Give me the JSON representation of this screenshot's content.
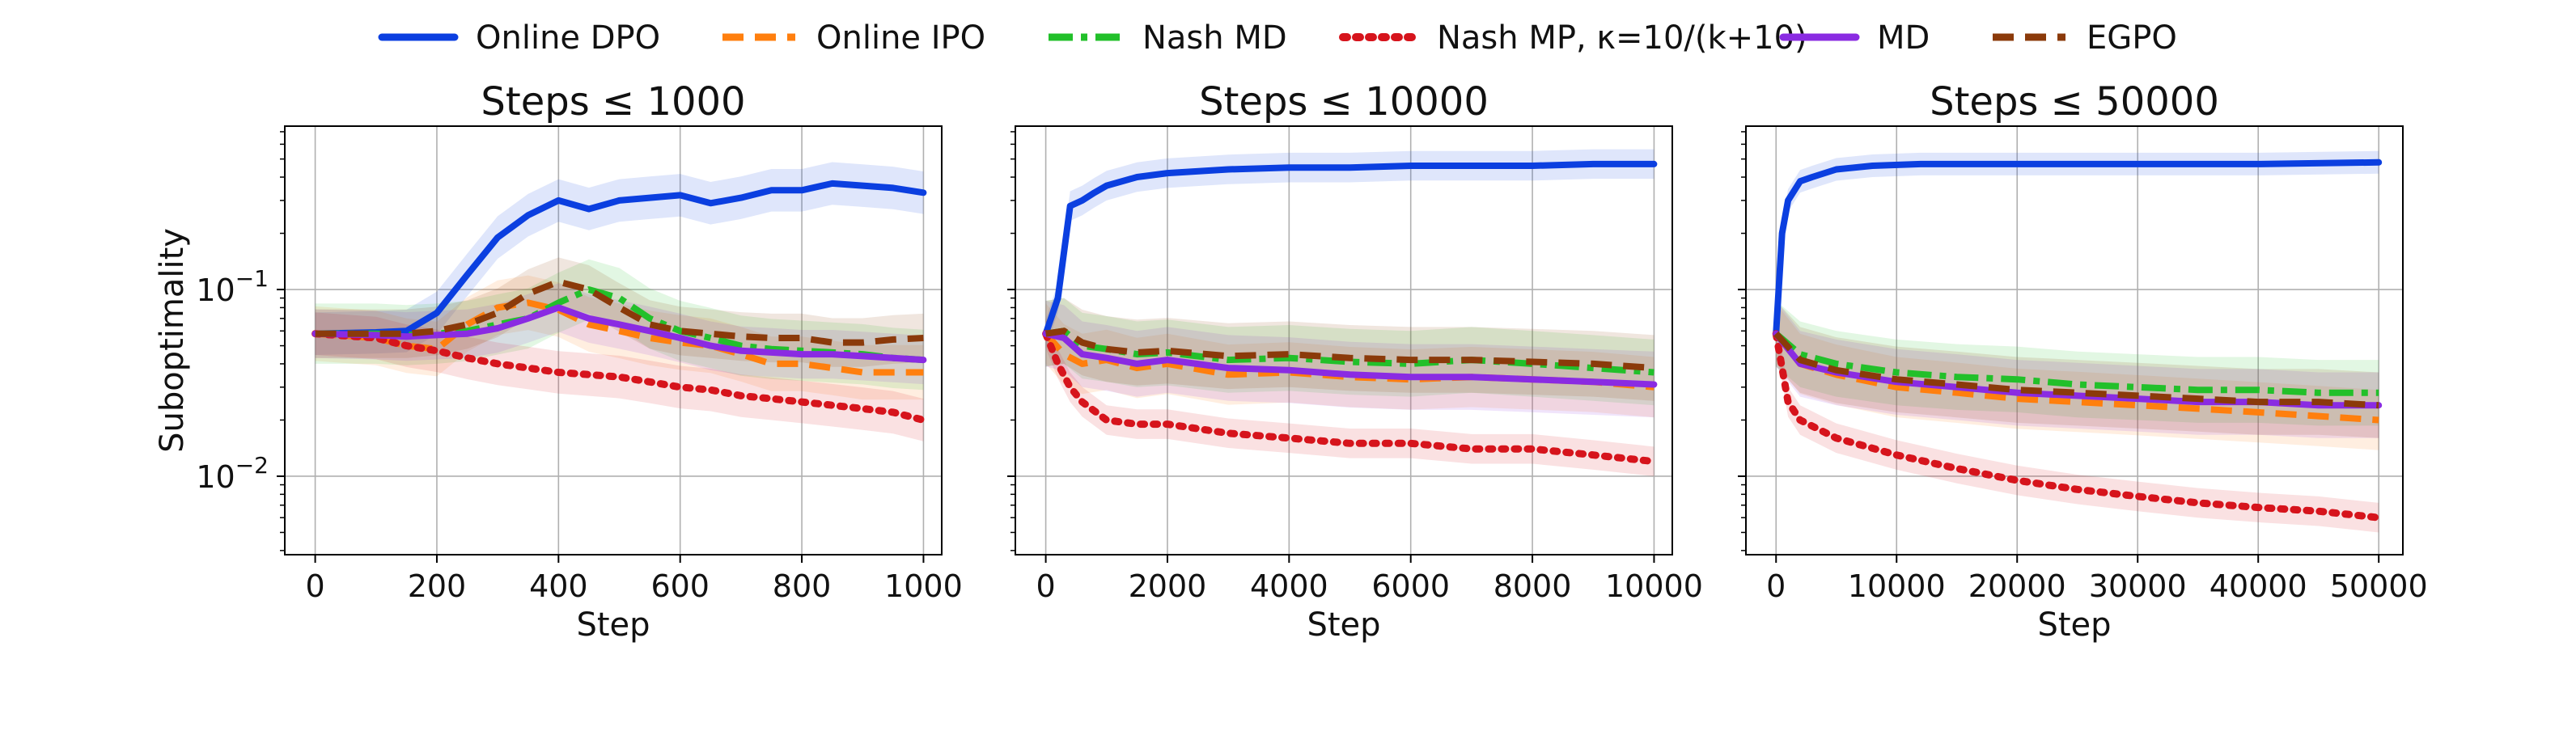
{
  "legend": [
    {
      "label": "Online DPO",
      "color": "#0b3fe0",
      "dash": "solid"
    },
    {
      "label": "Online IPO",
      "color": "#ff7f0e",
      "dash": "dash"
    },
    {
      "label": "Nash MD",
      "color": "#22c02a",
      "dash": "dashdot"
    },
    {
      "label": "Nash MP, κ=10/(k+10)",
      "color": "#d6141c",
      "dash": "dotted"
    },
    {
      "label": "MD",
      "color": "#8a2be2",
      "dash": "solid"
    },
    {
      "label": "EGPO",
      "color": "#8b3a0a",
      "dash": "dash"
    }
  ],
  "chart_data": [
    {
      "type": "line",
      "title": "Steps ≤ 1000",
      "xlabel": "Step",
      "ylabel": "Suboptimality",
      "yscale": "log",
      "xlim": [
        -50,
        1030
      ],
      "ylim": [
        0.0038,
        0.75
      ],
      "xticks": [
        0,
        200,
        400,
        600,
        800,
        1000
      ],
      "xtick_labels": [
        "0",
        "200",
        "400",
        "600",
        "800",
        "1000"
      ],
      "yticks": [
        0.1,
        0.01
      ],
      "ytick_labels": [
        "10^-1",
        "10^-2"
      ],
      "grid": true,
      "series": [
        {
          "name": "Online DPO",
          "x": [
            0,
            100,
            150,
            200,
            250,
            300,
            350,
            400,
            450,
            500,
            550,
            600,
            650,
            700,
            750,
            800,
            850,
            900,
            950,
            1000
          ],
          "y": [
            0.058,
            0.059,
            0.06,
            0.075,
            0.12,
            0.19,
            0.25,
            0.3,
            0.27,
            0.3,
            0.31,
            0.32,
            0.29,
            0.31,
            0.34,
            0.34,
            0.37,
            0.36,
            0.35,
            0.33
          ],
          "band": 0.3
        },
        {
          "name": "Online IPO",
          "x": [
            0,
            100,
            150,
            200,
            250,
            300,
            350,
            400,
            450,
            500,
            550,
            600,
            650,
            700,
            750,
            800,
            850,
            900,
            950,
            1000
          ],
          "y": [
            0.058,
            0.055,
            0.05,
            0.048,
            0.065,
            0.08,
            0.085,
            0.078,
            0.065,
            0.06,
            0.055,
            0.052,
            0.05,
            0.045,
            0.04,
            0.04,
            0.038,
            0.036,
            0.036,
            0.036
          ],
          "band": 0.4
        },
        {
          "name": "Nash MD",
          "x": [
            0,
            100,
            150,
            200,
            250,
            300,
            350,
            400,
            450,
            500,
            550,
            600,
            650,
            700,
            750,
            800,
            850,
            900,
            950,
            1000
          ],
          "y": [
            0.058,
            0.058,
            0.057,
            0.058,
            0.06,
            0.065,
            0.07,
            0.085,
            0.1,
            0.09,
            0.07,
            0.06,
            0.055,
            0.05,
            0.048,
            0.047,
            0.046,
            0.045,
            0.043,
            0.042
          ],
          "band": 0.45
        },
        {
          "name": "Nash MP",
          "x": [
            0,
            100,
            150,
            200,
            250,
            300,
            350,
            400,
            450,
            500,
            550,
            600,
            650,
            700,
            750,
            800,
            850,
            900,
            950,
            1000
          ],
          "y": [
            0.058,
            0.055,
            0.05,
            0.047,
            0.043,
            0.04,
            0.038,
            0.036,
            0.035,
            0.034,
            0.032,
            0.03,
            0.029,
            0.027,
            0.026,
            0.025,
            0.024,
            0.023,
            0.022,
            0.02
          ],
          "band": 0.3
        },
        {
          "name": "MD",
          "x": [
            0,
            100,
            150,
            200,
            250,
            300,
            350,
            400,
            450,
            500,
            550,
            600,
            650,
            700,
            750,
            800,
            850,
            900,
            950,
            1000
          ],
          "y": [
            0.058,
            0.057,
            0.056,
            0.057,
            0.058,
            0.062,
            0.07,
            0.08,
            0.07,
            0.065,
            0.06,
            0.055,
            0.05,
            0.047,
            0.046,
            0.045,
            0.045,
            0.044,
            0.043,
            0.042
          ],
          "band": 0.35
        },
        {
          "name": "EGPO",
          "x": [
            0,
            100,
            150,
            200,
            250,
            300,
            350,
            400,
            450,
            500,
            550,
            600,
            650,
            700,
            750,
            800,
            850,
            900,
            950,
            1000
          ],
          "y": [
            0.058,
            0.058,
            0.058,
            0.06,
            0.065,
            0.075,
            0.095,
            0.11,
            0.1,
            0.08,
            0.065,
            0.06,
            0.058,
            0.056,
            0.055,
            0.055,
            0.052,
            0.052,
            0.054,
            0.055
          ],
          "band": 0.35
        }
      ]
    },
    {
      "type": "line",
      "title": "Steps ≤ 10000",
      "xlabel": "Step",
      "ylabel": "",
      "yscale": "log",
      "xlim": [
        -500,
        10300
      ],
      "ylim": [
        0.0038,
        0.75
      ],
      "xticks": [
        0,
        2000,
        4000,
        6000,
        8000,
        10000
      ],
      "xtick_labels": [
        "0",
        "2000",
        "4000",
        "6000",
        "8000",
        "10000"
      ],
      "yticks": [],
      "ytick_labels": [],
      "grid": true,
      "series": [
        {
          "name": "Online DPO",
          "x": [
            0,
            200,
            400,
            600,
            800,
            1000,
            1500,
            2000,
            3000,
            4000,
            5000,
            6000,
            7000,
            8000,
            9000,
            10000
          ],
          "y": [
            0.058,
            0.09,
            0.28,
            0.3,
            0.33,
            0.36,
            0.4,
            0.42,
            0.44,
            0.45,
            0.45,
            0.46,
            0.46,
            0.46,
            0.47,
            0.47
          ],
          "band": 0.2
        },
        {
          "name": "Online IPO",
          "x": [
            0,
            300,
            600,
            1000,
            1500,
            2000,
            3000,
            4000,
            5000,
            6000,
            7000,
            8000,
            9000,
            10000
          ],
          "y": [
            0.058,
            0.045,
            0.04,
            0.042,
            0.038,
            0.04,
            0.035,
            0.036,
            0.034,
            0.033,
            0.034,
            0.033,
            0.032,
            0.03
          ],
          "band": 0.45
        },
        {
          "name": "Nash MD",
          "x": [
            0,
            300,
            600,
            1000,
            1500,
            2000,
            3000,
            4000,
            5000,
            6000,
            7000,
            8000,
            9000,
            10000
          ],
          "y": [
            0.058,
            0.06,
            0.05,
            0.048,
            0.045,
            0.046,
            0.042,
            0.043,
            0.041,
            0.04,
            0.042,
            0.04,
            0.038,
            0.036
          ],
          "band": 0.5
        },
        {
          "name": "Nash MP",
          "x": [
            0,
            200,
            400,
            600,
            1000,
            1500,
            2000,
            3000,
            4000,
            5000,
            6000,
            7000,
            8000,
            9000,
            10000
          ],
          "y": [
            0.058,
            0.04,
            0.03,
            0.025,
            0.02,
            0.019,
            0.019,
            0.017,
            0.016,
            0.015,
            0.015,
            0.014,
            0.014,
            0.013,
            0.012
          ],
          "band": 0.2
        },
        {
          "name": "MD",
          "x": [
            0,
            300,
            600,
            1000,
            1500,
            2000,
            3000,
            4000,
            5000,
            6000,
            7000,
            8000,
            9000,
            10000
          ],
          "y": [
            0.058,
            0.055,
            0.045,
            0.043,
            0.04,
            0.042,
            0.038,
            0.037,
            0.035,
            0.034,
            0.034,
            0.033,
            0.032,
            0.031
          ],
          "band": 0.5
        },
        {
          "name": "EGPO",
          "x": [
            0,
            300,
            600,
            1000,
            1500,
            2000,
            3000,
            4000,
            5000,
            6000,
            7000,
            8000,
            9000,
            10000
          ],
          "y": [
            0.058,
            0.06,
            0.052,
            0.048,
            0.046,
            0.047,
            0.044,
            0.045,
            0.043,
            0.042,
            0.042,
            0.041,
            0.04,
            0.038
          ],
          "band": 0.5
        }
      ]
    },
    {
      "type": "line",
      "title": "Steps ≤ 50000",
      "xlabel": "Step",
      "ylabel": "",
      "yscale": "log",
      "xlim": [
        -2500,
        52000
      ],
      "ylim": [
        0.0038,
        0.75
      ],
      "xticks": [
        0,
        10000,
        20000,
        30000,
        40000,
        50000
      ],
      "xtick_labels": [
        "0",
        "10000",
        "20000",
        "30000",
        "40000",
        "50000"
      ],
      "yticks": [],
      "ytick_labels": [],
      "grid": true,
      "series": [
        {
          "name": "Online DPO",
          "x": [
            0,
            500,
            1000,
            2000,
            3000,
            5000,
            8000,
            12000,
            20000,
            30000,
            40000,
            50000
          ],
          "y": [
            0.058,
            0.2,
            0.3,
            0.38,
            0.4,
            0.44,
            0.46,
            0.47,
            0.47,
            0.47,
            0.47,
            0.48
          ],
          "band": 0.15
        },
        {
          "name": "Online IPO",
          "x": [
            0,
            2000,
            5000,
            10000,
            15000,
            20000,
            25000,
            30000,
            35000,
            40000,
            45000,
            50000
          ],
          "y": [
            0.058,
            0.04,
            0.035,
            0.03,
            0.028,
            0.026,
            0.025,
            0.024,
            0.023,
            0.022,
            0.021,
            0.02
          ],
          "band": 0.45
        },
        {
          "name": "Nash MD",
          "x": [
            0,
            2000,
            5000,
            10000,
            15000,
            20000,
            25000,
            30000,
            35000,
            40000,
            45000,
            50000
          ],
          "y": [
            0.058,
            0.045,
            0.04,
            0.036,
            0.034,
            0.033,
            0.031,
            0.03,
            0.029,
            0.029,
            0.028,
            0.028
          ],
          "band": 0.5
        },
        {
          "name": "Nash MP",
          "x": [
            0,
            1000,
            2000,
            5000,
            10000,
            15000,
            20000,
            25000,
            30000,
            35000,
            40000,
            45000,
            50000
          ],
          "y": [
            0.058,
            0.025,
            0.02,
            0.016,
            0.013,
            0.011,
            0.0095,
            0.0085,
            0.0078,
            0.0072,
            0.0068,
            0.0065,
            0.006
          ],
          "band": 0.2
        },
        {
          "name": "MD",
          "x": [
            0,
            2000,
            5000,
            10000,
            15000,
            20000,
            25000,
            30000,
            35000,
            40000,
            45000,
            50000
          ],
          "y": [
            0.058,
            0.04,
            0.036,
            0.032,
            0.03,
            0.028,
            0.027,
            0.026,
            0.025,
            0.025,
            0.024,
            0.024
          ],
          "band": 0.5
        },
        {
          "name": "EGPO",
          "x": [
            0,
            2000,
            5000,
            10000,
            15000,
            20000,
            25000,
            30000,
            35000,
            40000,
            45000,
            50000
          ],
          "y": [
            0.058,
            0.042,
            0.037,
            0.033,
            0.031,
            0.029,
            0.028,
            0.027,
            0.026,
            0.025,
            0.025,
            0.024
          ],
          "band": 0.5
        }
      ]
    }
  ]
}
